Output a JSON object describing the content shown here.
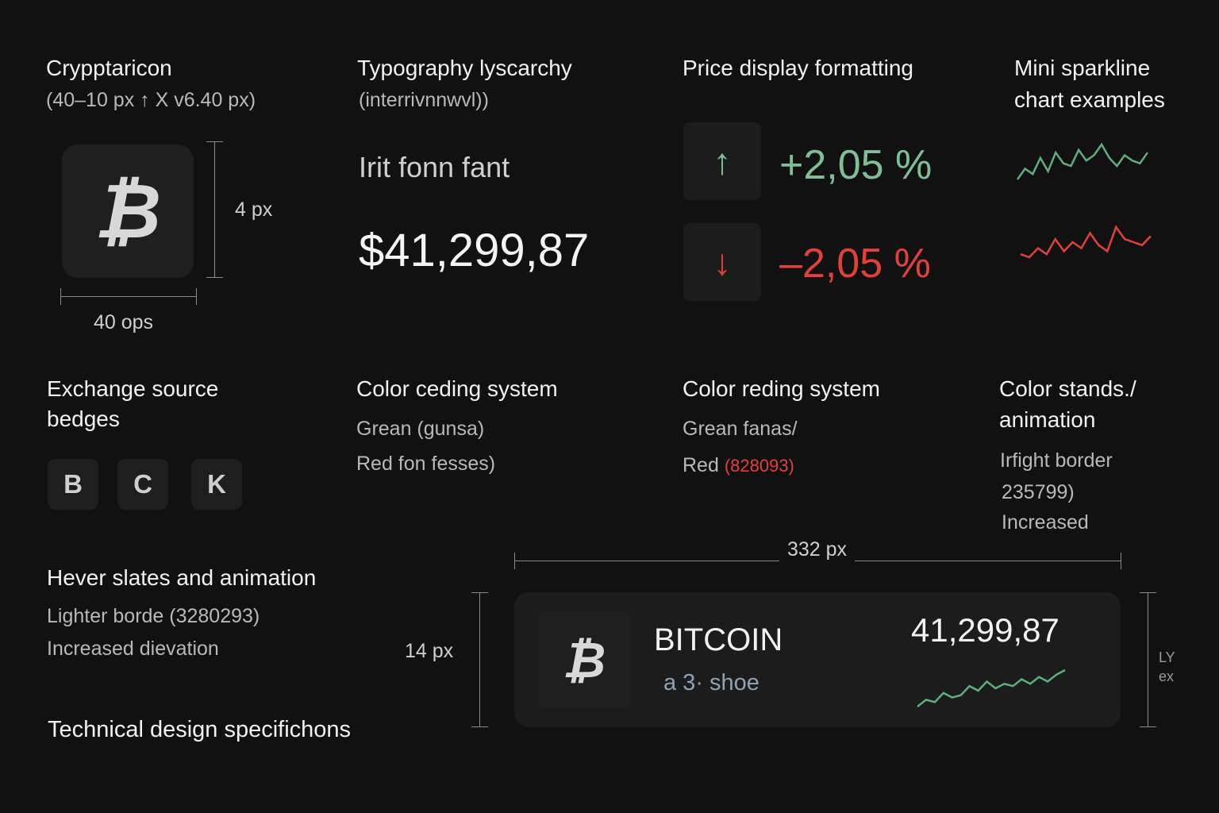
{
  "icon_section": {
    "title": "Crypptaricon",
    "subtitle": "(40–10 px ↑ X v6.40 px)",
    "icon_name": "bitcoin-icon",
    "height_label": "4 px",
    "width_label": "40 ops"
  },
  "typography_section": {
    "title": "Typography lyscarchy",
    "subtitle": "(interrivnnwvl))",
    "font_sample": "Irit  fonn fant",
    "price_sample": "$41,299,87"
  },
  "price_format_section": {
    "title": "Price display formatting",
    "up_value": "+2,05 %",
    "down_value": "–2,05 %",
    "up_icon": "arrow-up-icon",
    "down_icon": "arrow-down-icon"
  },
  "sparkline_section": {
    "title_line1": "Mini sparkline",
    "title_line2": "chart examples",
    "green_line": [
      4,
      8,
      6,
      12,
      7,
      14,
      10,
      9,
      15,
      11,
      13,
      17,
      12,
      9,
      13,
      11,
      10,
      14
    ],
    "red_line": [
      5,
      4,
      7,
      5,
      10,
      6,
      9,
      7,
      12,
      8,
      6,
      14,
      10,
      9,
      8,
      11
    ]
  },
  "exchange_section": {
    "title_line1": "Exchange source",
    "title_line2": "bedges",
    "badges": [
      "B",
      "C",
      "K"
    ]
  },
  "color_coding_a": {
    "title": "Color ceding system",
    "line1": "Grean (gunsa)",
    "line2": "Red fon fesses)"
  },
  "color_coding_b": {
    "title": "Color reding system",
    "line1": "Grean fanas/",
    "line2_prefix": "Red ",
    "line2_value": "(828093)"
  },
  "color_stands_section": {
    "title_line1": "Color stands./",
    "title_line2": "animation",
    "line1": "Irfight border",
    "line2": "235799)",
    "line3": "Increased"
  },
  "hover_section": {
    "title": "Hever slates and animation",
    "line1": "Lighter borde (3280293)",
    "line2": "Increased dievation"
  },
  "footer": {
    "title": "Technical design specifichons"
  },
  "card_spec": {
    "width_label": "332 px",
    "height_label": "14 px",
    "right_label_line1": "LY",
    "right_label_line2": "ex",
    "coin_name": "BITCOIN",
    "coin_sub": "a 3· shoe",
    "price": "41,299,87",
    "icon_name": "bitcoin-icon",
    "spark": [
      3,
      6,
      5,
      9,
      7,
      8,
      12,
      10,
      14,
      11,
      13,
      12,
      15,
      13,
      16,
      14,
      17,
      19
    ]
  },
  "colors": {
    "background": "#111111",
    "tile": "#1f1f1f",
    "positive": "#7fbf95",
    "negative": "#e2403a",
    "text": "#f2f2f2",
    "muted": "#b9b9b9"
  }
}
